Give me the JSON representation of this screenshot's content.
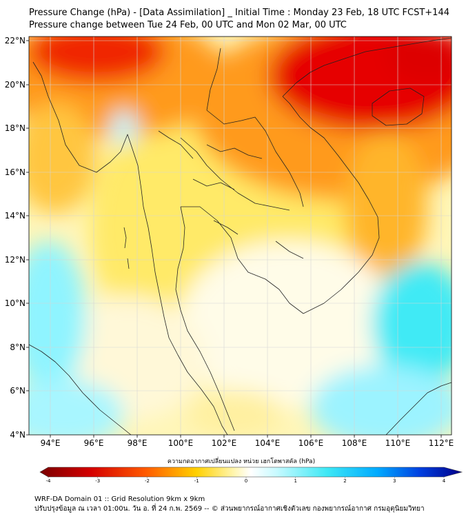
{
  "header": {
    "title_line1": "Pressure Change (hPa) - [Data Assimilation] _ Initial Time : Monday 23 Feb, 18 UTC FCST+144",
    "title_line2": "Pressure change between Tue 24 Feb, 00 UTC and Mon 02 Mar, 00 UTC"
  },
  "map": {
    "lat_ticks": [
      "22°N",
      "20°N",
      "18°N",
      "16°N",
      "14°N",
      "12°N",
      "10°N",
      "8°N",
      "6°N",
      "4°N"
    ],
    "lon_ticks": [
      "94°E",
      "96°E",
      "98°E",
      "100°E",
      "102°E",
      "104°E",
      "106°E",
      "108°E",
      "110°E",
      "112°E"
    ],
    "colors": {
      "strong_rise": "#e60000",
      "rise": "#ff8c00",
      "mild_rise": "#ffd700",
      "neutral": "#fffde0",
      "fall": "#7ff0ff",
      "strong_fall": "#28e6f0",
      "coastline": "#222222",
      "grid": "#cfcfcf"
    }
  },
  "colorbar": {
    "label": "ความกดอากาศเปลี่ยนแปลง หน่วย เฮกโตพาสคัล (hPa)",
    "ticks": [
      "-4",
      "-3",
      "-2",
      "-1",
      "0",
      "1",
      "2",
      "3",
      "4"
    ],
    "range": [
      -4,
      4
    ]
  },
  "footer": {
    "line1": "WRF-DA Domain 01 :: Grid Resolution 9km x 9km",
    "line2": "ปรับปรุงข้อมูล ณ เวลา 01:00น. วัน อ. ที่ 24 ก.พ. 2569 -- © ส่วนพยากรณ์อากาศเชิงตัวเลข กองพยากรณ์อากาศ กรมอุตุนิยมวิทยา"
  }
}
